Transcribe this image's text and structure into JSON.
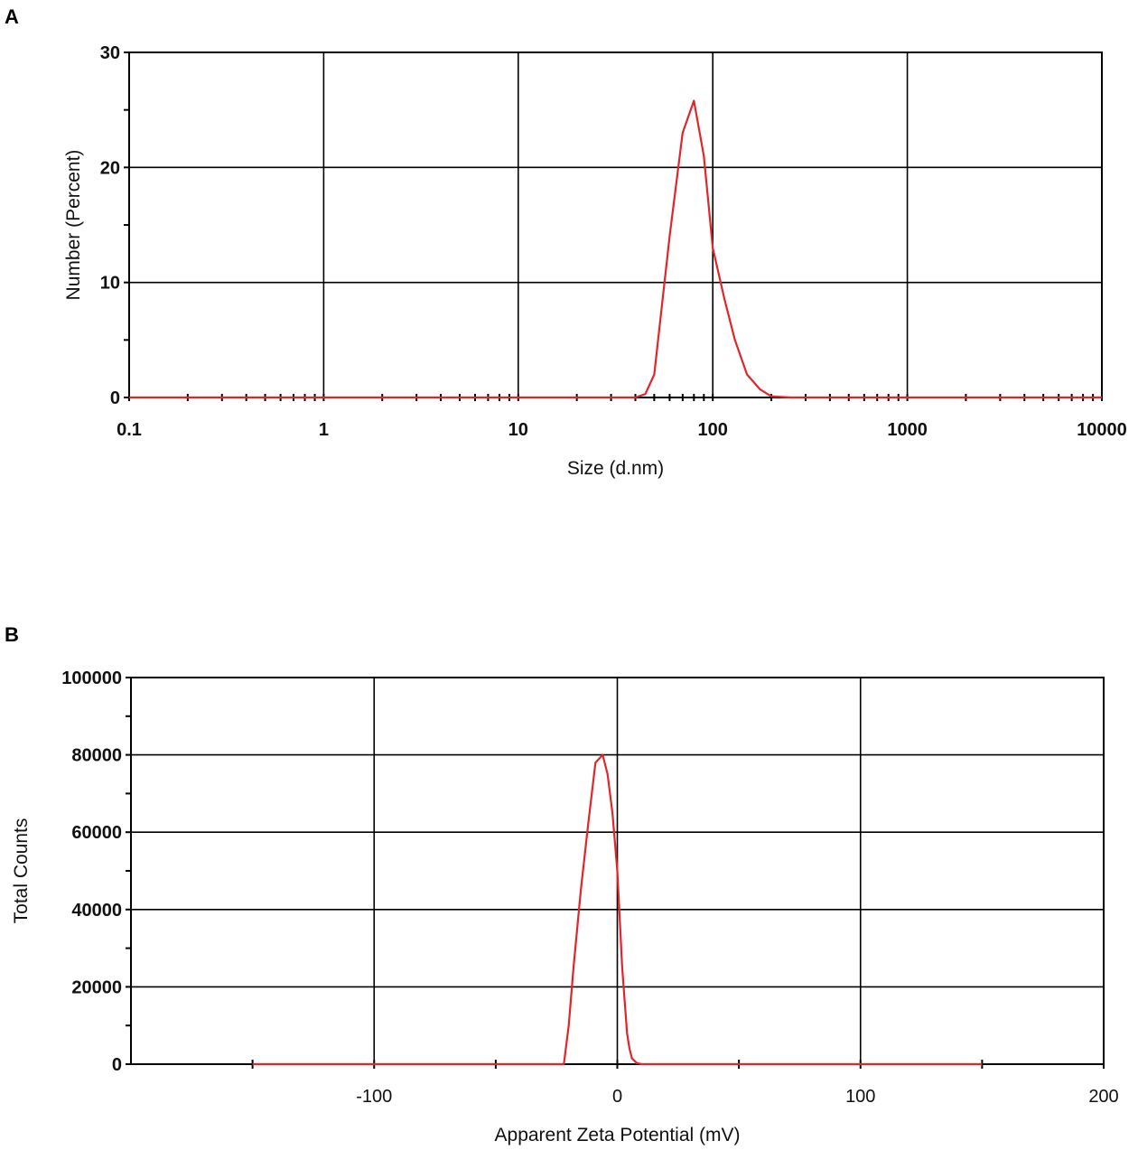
{
  "panels": {
    "a": {
      "letter": "A"
    },
    "b": {
      "letter": "B"
    }
  },
  "colors": {
    "series": "#e0262a",
    "grid": "#000000",
    "axis": "#000000"
  },
  "chart_data": [
    {
      "type": "line",
      "panel": "A",
      "title": "",
      "xlabel": "Size (d.nm)",
      "ylabel": "Number (Percent)",
      "xscale": "log",
      "xlim": [
        0.1,
        10000
      ],
      "ylim": [
        0,
        30
      ],
      "xticks": [
        "0.1",
        "1",
        "10",
        "100",
        "1000",
        "10000"
      ],
      "xtick_values": [
        0.1,
        1,
        10,
        100,
        1000,
        10000
      ],
      "yticks": [
        "0",
        "10",
        "20",
        "30"
      ],
      "ytick_values": [
        0,
        10,
        20,
        30
      ],
      "grid": true,
      "series": [
        {
          "x": [
            0.1,
            0.5,
            1,
            5,
            10,
            20,
            40,
            45,
            50,
            60,
            70,
            80,
            90,
            100,
            115,
            130,
            150,
            175,
            200,
            250,
            1000,
            10000
          ],
          "y": [
            0,
            0,
            0,
            0,
            0,
            0,
            0,
            0.3,
            2,
            14,
            23,
            25.8,
            21,
            13,
            8.5,
            5,
            2,
            0.7,
            0.1,
            0,
            0,
            0
          ]
        }
      ]
    },
    {
      "type": "line",
      "panel": "B",
      "title": "",
      "xlabel": "Apparent Zeta Potential (mV)",
      "ylabel": "Total Counts",
      "xlim": [
        -200,
        200
      ],
      "ylim": [
        0,
        100000
      ],
      "xticks": [
        "-100",
        "0",
        "100",
        "200"
      ],
      "xtick_values": [
        -100,
        0,
        100,
        200
      ],
      "yticks": [
        "0",
        "20000",
        "40000",
        "60000",
        "80000",
        "100000"
      ],
      "ytick_values": [
        0,
        20000,
        40000,
        60000,
        80000,
        100000
      ],
      "grid": true,
      "series": [
        {
          "x": [
            -150,
            -100,
            -50,
            -22,
            -20,
            -18,
            -15,
            -12,
            -9,
            -6,
            -4,
            -2,
            0,
            2,
            4,
            5,
            6,
            8,
            10,
            50,
            100,
            150
          ],
          "y": [
            0,
            0,
            0,
            0,
            10000,
            25000,
            45000,
            62000,
            78000,
            80000,
            75000,
            65000,
            50000,
            25000,
            8000,
            4000,
            1500,
            300,
            0,
            0,
            0,
            0
          ]
        }
      ]
    }
  ]
}
